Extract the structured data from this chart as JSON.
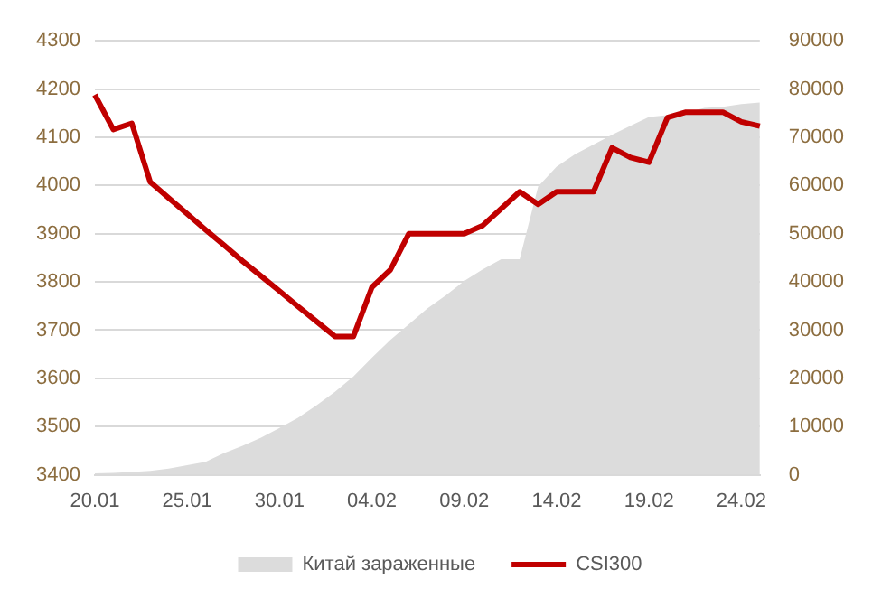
{
  "chart_data": {
    "type": "line",
    "categories": [
      "20.01",
      null,
      null,
      null,
      null,
      "25.01",
      null,
      null,
      null,
      null,
      "30.01",
      null,
      null,
      null,
      null,
      "04.02",
      null,
      null,
      null,
      null,
      "09.02",
      null,
      null,
      null,
      null,
      "14.02",
      null,
      null,
      null,
      null,
      "19.02",
      null,
      null,
      null,
      null,
      "24.02",
      null
    ],
    "series": [
      {
        "name": "Китай зараженные",
        "type": "area",
        "axis": "y2",
        "color": "#dcdcdc",
        "values": [
          300,
          400,
          600,
          800,
          1300,
          2000,
          2700,
          4500,
          6000,
          7700,
          9700,
          11800,
          14400,
          17200,
          20400,
          24300,
          28000,
          31200,
          34500,
          37200,
          40200,
          42600,
          44700,
          44700,
          59800,
          63900,
          66500,
          68500,
          70500,
          72400,
          74200,
          74600,
          75100,
          76100,
          76300,
          76900,
          77200
        ]
      },
      {
        "name": "CSI300",
        "color": "#c00000",
        "values": [
          4188,
          4116,
          4129,
          4007,
          3974,
          3941,
          3908,
          3876,
          3843,
          3812,
          3781,
          3749,
          3718,
          3687,
          3687,
          3789,
          3825,
          3900,
          3900,
          3900,
          3900,
          3917,
          3952,
          3987,
          3961,
          3987,
          3987,
          3987,
          4078,
          4058,
          4048,
          4141,
          4152,
          4152,
          4152,
          4132,
          4123
        ]
      }
    ],
    "ylim": [
      3400,
      4300
    ],
    "yticks": [
      3400,
      3500,
      3600,
      3700,
      3800,
      3900,
      4000,
      4100,
      4200,
      4300
    ],
    "y2lim": [
      0,
      90000
    ],
    "y2ticks": [
      0,
      10000,
      20000,
      30000,
      40000,
      50000,
      60000,
      70000,
      80000,
      90000
    ],
    "grid": "y",
    "legend": "bottom",
    "marker": "none",
    "line_style": "solid"
  }
}
